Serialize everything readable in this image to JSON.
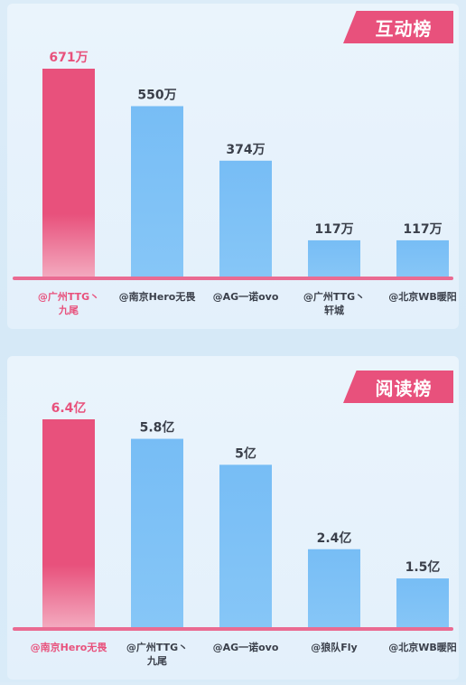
{
  "colors": {
    "highlight": "#e8517c",
    "bar": "#77bdf5",
    "axis": "#ea6b92",
    "highlight_label": "#e8517c",
    "label": "#3a3f4a"
  },
  "chart_data": [
    {
      "type": "bar",
      "title": "互动榜",
      "categories": [
        "@广州TTG丶九尾",
        "@南京Hero无畏",
        "@AG一诺ovo",
        "@广州TTG丶轩城",
        "@北京WB暖阳"
      ],
      "category_lines": [
        [
          "@广州TTG丶",
          "九尾"
        ],
        [
          "@南京Hero无畏"
        ],
        [
          "@AG一诺ovo"
        ],
        [
          "@广州TTG丶",
          "轩城"
        ],
        [
          "@北京WB暖阳"
        ]
      ],
      "values": [
        671,
        550,
        374,
        117,
        117
      ],
      "value_labels": [
        "671万",
        "550万",
        "374万",
        "117万",
        "117万"
      ],
      "unit": "万",
      "highlight_index": 0,
      "ylim": [
        0,
        671
      ]
    },
    {
      "type": "bar",
      "title": "阅读榜",
      "categories": [
        "@南京Hero无畏",
        "@广州TTG丶九尾",
        "@AG一诺ovo",
        "@狼队Fly",
        "@北京WB暖阳"
      ],
      "category_lines": [
        [
          "@南京Hero无畏"
        ],
        [
          "@广州TTG丶",
          "九尾"
        ],
        [
          "@AG一诺ovo"
        ],
        [
          "@狼队Fly"
        ],
        [
          "@北京WB暖阳"
        ]
      ],
      "values": [
        6.4,
        5.8,
        5,
        2.4,
        1.5
      ],
      "value_labels": [
        "6.4亿",
        "5.8亿",
        "5亿",
        "2.4亿",
        "1.5亿"
      ],
      "unit": "亿",
      "highlight_index": 0,
      "ylim": [
        0,
        6.4
      ]
    }
  ]
}
